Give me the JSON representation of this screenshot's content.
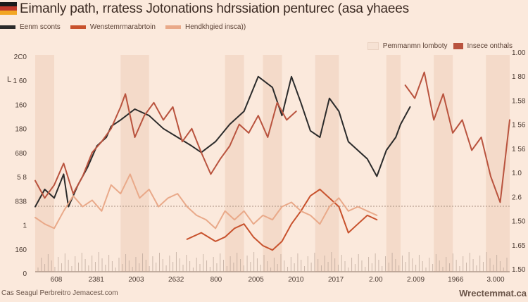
{
  "header": {
    "title": "Eimanly path, rratess Jotonations hdrssiation penturec (asa yhaees",
    "flag_colors": [
      "#1a1a1a",
      "#c0392b",
      "#f2a623"
    ]
  },
  "footer": {
    "left_text": "Cas Seagul Perbreitro Jemacest.com",
    "right_text": "Wrectemmat.ca"
  },
  "chart_data": {
    "type": "line",
    "title": "Eimanly path, rratess Jotonations hdrssiation penturec (asa yhaees",
    "ylabel_left": "L",
    "left_ticks": [
      "2C0",
      "1 60",
      "160",
      "180",
      "680",
      "5 8",
      "838",
      "1",
      "160",
      "0"
    ],
    "right_ticks": [
      "1.00",
      "1 80",
      "1.58",
      "1 56",
      "1 56",
      "1.0",
      "2.6",
      "1.50",
      "1.65",
      "1.50"
    ],
    "x_ticks": [
      "608",
      "2381",
      "2003",
      "2632",
      "800",
      "2005",
      "2010",
      "2017",
      "2.00",
      "2.009",
      "1966",
      "3.000"
    ],
    "legend": [
      {
        "name": "Eenm sconts",
        "color": "#2b2b2b"
      },
      {
        "name": "Wenstemrmarabrtoin",
        "color": "#c8522d"
      },
      {
        "name": "Hendkhgied insca))",
        "color": "#e9a989"
      }
    ],
    "legend_right": [
      {
        "name": "Pemmanmn lomboty",
        "color": "#f6e2d4"
      },
      {
        "name": "Insece onthals",
        "color": "#b9533e"
      }
    ],
    "x_range": [
      0,
      100
    ],
    "y_range": [
      0,
      100
    ],
    "shaded_periods": [
      [
        0,
        4
      ],
      [
        18,
        24
      ],
      [
        40,
        44
      ],
      [
        48,
        52
      ],
      [
        59,
        64
      ],
      [
        74,
        77
      ],
      [
        84,
        88
      ],
      [
        95,
        100
      ]
    ],
    "series": [
      {
        "name": "Eenm sconts",
        "color": "#2b2b2b",
        "x": [
          0,
          2,
          4,
          6,
          7,
          9,
          11,
          13,
          15,
          16,
          18,
          21,
          24,
          27,
          30,
          33,
          35,
          38,
          41,
          44,
          47,
          50,
          52,
          54,
          56,
          58,
          60,
          62,
          64,
          66,
          68,
          70,
          72,
          74,
          76,
          77,
          79
        ],
        "y": [
          30,
          38,
          34,
          45,
          30,
          40,
          48,
          58,
          62,
          67,
          70,
          75,
          72,
          66,
          62,
          58,
          55,
          60,
          68,
          74,
          90,
          85,
          72,
          90,
          78,
          65,
          62,
          80,
          74,
          60,
          56,
          52,
          44,
          56,
          62,
          68,
          76
        ]
      },
      {
        "name": "Wenstemrmarabrtoin",
        "color": "#c8522d",
        "x": [
          32,
          35,
          38,
          40,
          42,
          44,
          46,
          48,
          50,
          52,
          54,
          56,
          58,
          60,
          62,
          64,
          66,
          68,
          70,
          72
        ],
        "y": [
          15,
          18,
          14,
          16,
          20,
          22,
          16,
          12,
          10,
          14,
          22,
          28,
          35,
          38,
          34,
          30,
          18,
          22,
          26,
          24
        ]
      },
      {
        "name": "Hendkhgied insca))",
        "color": "#e9a989",
        "x": [
          0,
          2,
          4,
          6,
          8,
          10,
          12,
          14,
          16,
          18,
          20,
          22,
          24,
          26,
          28,
          30,
          32,
          34,
          36,
          38,
          40,
          42,
          44,
          46,
          48,
          50,
          52,
          54,
          56,
          58,
          60,
          62,
          64,
          66,
          68,
          70,
          72
        ],
        "y": [
          25,
          22,
          20,
          28,
          35,
          30,
          33,
          28,
          40,
          36,
          45,
          34,
          38,
          30,
          34,
          36,
          30,
          26,
          24,
          20,
          28,
          24,
          28,
          22,
          26,
          24,
          30,
          32,
          28,
          26,
          22,
          30,
          34,
          28,
          30,
          28,
          26
        ]
      },
      {
        "name": "Insece onthals",
        "color": "#b9533e",
        "x": [
          0,
          2,
          4,
          6,
          8,
          10,
          12,
          14,
          16,
          18,
          19,
          21,
          23,
          25,
          27,
          29,
          31,
          33,
          35,
          37,
          39,
          41,
          43,
          45,
          47,
          49,
          51,
          53,
          55
        ],
        "y": [
          42,
          34,
          40,
          50,
          36,
          44,
          55,
          60,
          66,
          76,
          82,
          62,
          72,
          78,
          70,
          76,
          60,
          66,
          55,
          45,
          52,
          58,
          68,
          64,
          72,
          62,
          78,
          70,
          74
        ]
      },
      {
        "name": "Insece onthals",
        "color": "#b9533e",
        "x": [
          78,
          80,
          82,
          84,
          86,
          88,
          90,
          92,
          94,
          96,
          98,
          100
        ],
        "y": [
          86,
          80,
          92,
          70,
          82,
          64,
          70,
          56,
          62,
          44,
          32,
          70
        ]
      }
    ],
    "grid": false
  }
}
